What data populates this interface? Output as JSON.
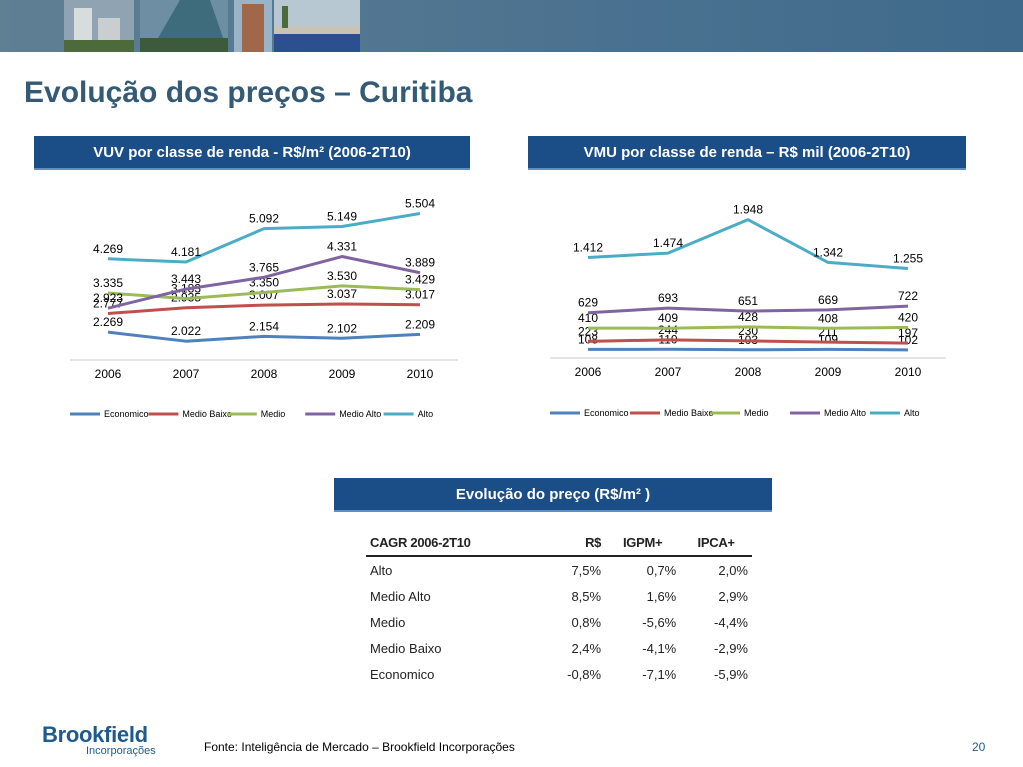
{
  "title": "Evolução dos preços – Curitiba",
  "charts": {
    "vuv": {
      "header": "VUV por classe de renda - R$/m² (2006-2T10)"
    },
    "vmu": {
      "header": "VMU por classe de renda – R$ mil  (2006-2T10)"
    }
  },
  "chart_data": [
    {
      "type": "line",
      "title": "VUV por classe de renda - R$/m² (2006-2T10)",
      "categories": [
        "2006",
        "2007",
        "2008",
        "2009",
        "2010"
      ],
      "legend_position": "bottom",
      "series": [
        {
          "name": "Economico",
          "color": "#4f81bd",
          "values": [
            2269,
            2022,
            2154,
            2102,
            2209
          ],
          "labels": [
            "2.269",
            "2.022",
            "2.154",
            "2.102",
            "2.209"
          ]
        },
        {
          "name": "Medio Baixo",
          "color": "#c0504d",
          "values": [
            2777,
            2935,
            3007,
            3037,
            3017
          ],
          "labels": [
            "2.777",
            "2.935",
            "3.007",
            "3.037",
            "3.017"
          ]
        },
        {
          "name": "Medio",
          "color": "#9bbb59",
          "values": [
            3335,
            3183,
            3350,
            3530,
            3429
          ],
          "labels": [
            "3.335",
            "3.183",
            "3.350",
            "3.530",
            "3.429"
          ]
        },
        {
          "name": "Medio Alto",
          "color": "#8064a2",
          "values": [
            2923,
            3443,
            3765,
            4331,
            3889
          ],
          "labels": [
            "2.923",
            "3.443",
            "3.765",
            "4.331",
            "3.889"
          ]
        },
        {
          "name": "Alto",
          "color": "#4bacc6",
          "values": [
            4269,
            4181,
            5092,
            5149,
            5504
          ],
          "labels": [
            "4.269",
            "4.181",
            "5.092",
            "5.149",
            "5.504"
          ]
        }
      ]
    },
    {
      "type": "line",
      "title": "VMU por classe de renda – R$ mil  (2006-2T10)",
      "categories": [
        "2006",
        "2007",
        "2008",
        "2009",
        "2010"
      ],
      "legend_position": "bottom",
      "series": [
        {
          "name": "Economico",
          "color": "#4f81bd",
          "values": [
            108,
            110,
            103,
            109,
            102
          ],
          "labels": [
            "108",
            "110",
            "103",
            "109",
            "102"
          ]
        },
        {
          "name": "Medio Baixo",
          "color": "#c0504d",
          "values": [
            223,
            244,
            230,
            211,
            197
          ],
          "labels": [
            "223",
            "244",
            "230",
            "211",
            "197"
          ]
        },
        {
          "name": "Medio",
          "color": "#9bbb59",
          "values": [
            410,
            409,
            428,
            408,
            420
          ],
          "labels": [
            "410",
            "409",
            "428",
            "408",
            "420"
          ]
        },
        {
          "name": "Medio Alto",
          "color": "#8064a2",
          "values": [
            629,
            693,
            651,
            669,
            722
          ],
          "labels": [
            "629",
            "693",
            "651",
            "669",
            "722"
          ]
        },
        {
          "name": "Alto",
          "color": "#4bacc6",
          "values": [
            1412,
            1474,
            1948,
            1342,
            1255
          ],
          "labels": [
            "1.412",
            "1.474",
            "1.948",
            "1.342",
            "1.255"
          ]
        }
      ]
    },
    {
      "type": "table",
      "title": "Evolução do preço (R$/m² )",
      "columns": [
        "CAGR 2006-2T10",
        "R$",
        "IGPM+",
        "IPCA+"
      ],
      "rows": [
        [
          "Alto",
          "7,5%",
          "0,7%",
          "2,0%"
        ],
        [
          "Medio Alto",
          "8,5%",
          "1,6%",
          "2,9%"
        ],
        [
          "Medio",
          "0,8%",
          "-5,6%",
          "-4,4%"
        ],
        [
          "Medio Baixo",
          "2,4%",
          "-4,1%",
          "-2,9%"
        ],
        [
          "Economico",
          "-0,8%",
          "-7,1%",
          "-5,9%"
        ]
      ]
    }
  ],
  "logo": {
    "name": "Brookfield",
    "sub": "Incorporações"
  },
  "source": "Fonte: Inteligência de Mercado – Brookfield Incorporações",
  "page_number": "20"
}
